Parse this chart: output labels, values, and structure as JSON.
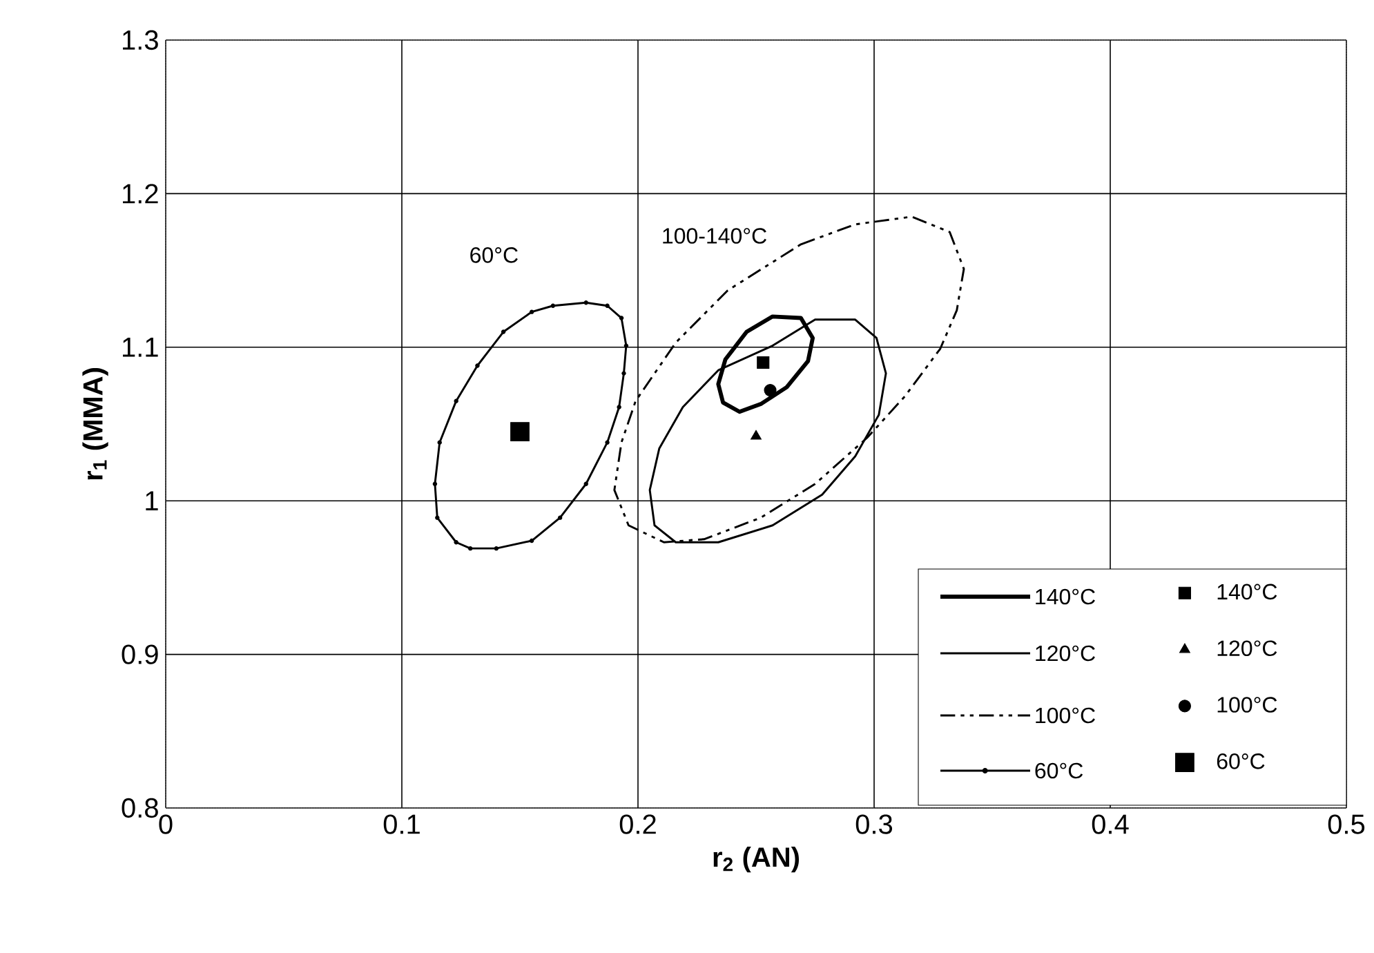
{
  "chart_data": {
    "type": "scatter",
    "xlabel": "r$_{2}$ (AN)",
    "ylabel": "r$_{1}$ (MMA)",
    "xlim": [
      0,
      0.5
    ],
    "ylim": [
      0.8,
      1.3
    ],
    "xticks": [
      0,
      0.1,
      0.2,
      0.3,
      0.4,
      0.5
    ],
    "yticks": [
      0.8,
      0.9,
      1,
      1.1,
      1.2,
      1.3
    ],
    "grid": true,
    "legend": "bottom right",
    "annotations": [
      "60°C",
      "100-140°C",
      "140°C",
      "120°C",
      "100°C",
      "60°C"
    ],
    "series": [
      {
        "name": "140°C",
        "color": "#000000",
        "marker": "square",
        "x": [
          0.253
        ],
        "values": [
          1.09
        ]
      },
      {
        "name": "120°C",
        "color": "#000000",
        "marker": "triangle",
        "x": [
          0.25
        ],
        "values": [
          1.042
        ]
      },
      {
        "name": "100°C",
        "color": "#000000",
        "marker": "circle",
        "x": [
          0.256
        ],
        "values": [
          1.072
        ]
      },
      {
        "name": "60°C",
        "color": "#000000",
        "marker": "square",
        "x": [
          0.15
        ],
        "values": [
          1.045
        ]
      }
    ]
  }
}
